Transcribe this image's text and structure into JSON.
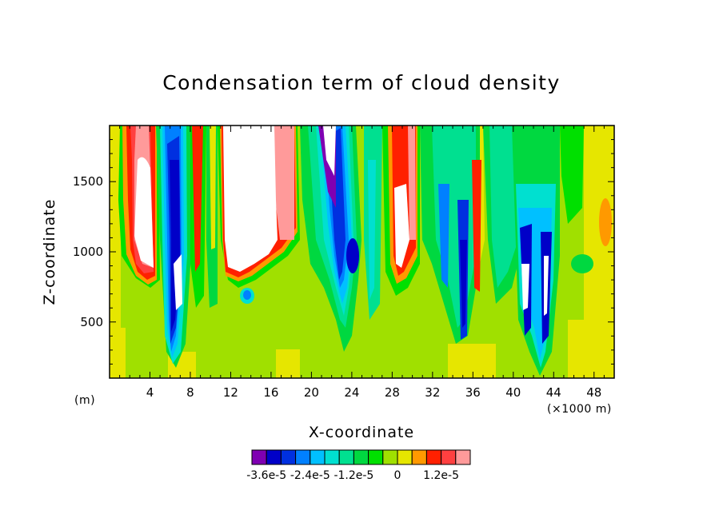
{
  "chart_data": {
    "type": "heatmap",
    "title": "Condensation term of cloud density",
    "xlabel": "X-coordinate",
    "ylabel": "Z-coordinate",
    "x_unit_left": "(m)",
    "x_unit_right": "(×1000 m)",
    "xlim": [
      0,
      50
    ],
    "ylim": [
      100,
      1900
    ],
    "x_ticks": [
      4,
      8,
      12,
      16,
      20,
      24,
      28,
      32,
      36,
      40,
      44,
      48
    ],
    "y_ticks": [
      500,
      1000,
      1500
    ],
    "colorbar": {
      "colors": [
        "#7f00b2",
        "#0000c8",
        "#0030e0",
        "#0080ff",
        "#00c0ff",
        "#00e0d0",
        "#00e090",
        "#00d840",
        "#00e000",
        "#a0e000",
        "#e6e600",
        "#ff9900",
        "#ff2000",
        "#ff4040",
        "#ff9a9a"
      ],
      "tick_labels": [
        "-3.6e-5",
        "-2.4e-5",
        "-1.2e-5",
        "0",
        "1.2e-5"
      ]
    }
  }
}
